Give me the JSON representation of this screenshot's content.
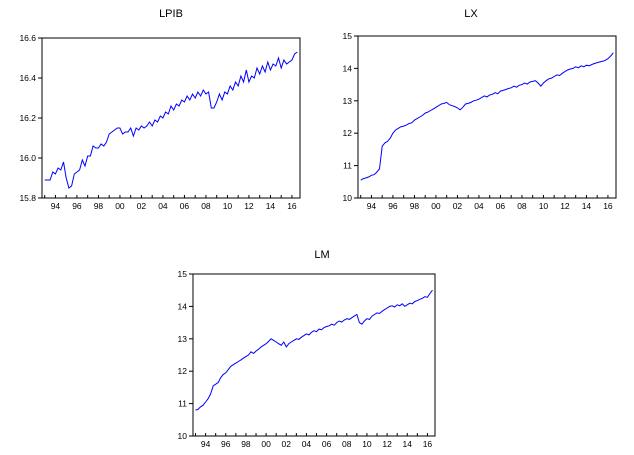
{
  "chart_data": [
    {
      "type": "line",
      "title": "LPIB",
      "xlabel": "",
      "ylabel": "",
      "xlim": [
        1992.75,
        2016.75
      ],
      "ylim": [
        15.8,
        16.6
      ],
      "yticks": [
        15.8,
        16.0,
        16.2,
        16.4,
        16.6
      ],
      "ytick_labels": [
        "15.8",
        "16.0",
        "16.2",
        "16.4",
        "16.6"
      ],
      "xticks": [
        1994,
        1996,
        1998,
        2000,
        2002,
        2004,
        2006,
        2008,
        2010,
        2012,
        2014,
        2016
      ],
      "xtick_labels": [
        "94",
        "96",
        "98",
        "00",
        "02",
        "04",
        "06",
        "08",
        "10",
        "12",
        "14",
        "16"
      ],
      "grid": false,
      "series": [
        {
          "color": "#0000ff",
          "x": [
            1993.0,
            1993.5,
            1993.75,
            1994.0,
            1994.25,
            1994.5,
            1994.75,
            1995.0,
            1995.25,
            1995.5,
            1995.75,
            1996.0,
            1996.25,
            1996.5,
            1996.75,
            1997.0,
            1997.25,
            1997.5,
            1997.75,
            1998.0,
            1998.25,
            1998.5,
            1998.75,
            1999.0,
            1999.25,
            1999.5,
            1999.75,
            2000.0,
            2000.25,
            2000.5,
            2000.75,
            2001.0,
            2001.25,
            2001.5,
            2001.75,
            2002.0,
            2002.25,
            2002.5,
            2002.75,
            2003.0,
            2003.25,
            2003.5,
            2003.75,
            2004.0,
            2004.25,
            2004.5,
            2004.75,
            2005.0,
            2005.25,
            2005.5,
            2005.75,
            2006.0,
            2006.25,
            2006.5,
            2006.75,
            2007.0,
            2007.25,
            2007.5,
            2007.75,
            2008.0,
            2008.25,
            2008.5,
            2008.75,
            2009.0,
            2009.25,
            2009.5,
            2009.75,
            2010.0,
            2010.25,
            2010.5,
            2010.75,
            2011.0,
            2011.25,
            2011.5,
            2011.75,
            2012.0,
            2012.25,
            2012.5,
            2012.75,
            2013.0,
            2013.25,
            2013.5,
            2013.75,
            2014.0,
            2014.25,
            2014.5,
            2014.75,
            2015.0,
            2015.25,
            2015.5,
            2015.75,
            2016.0,
            2016.25,
            2016.5
          ],
          "y": [
            15.89,
            15.89,
            15.93,
            15.92,
            15.95,
            15.94,
            15.98,
            15.9,
            15.85,
            15.86,
            15.92,
            15.93,
            15.94,
            15.99,
            15.96,
            16.01,
            16.01,
            16.06,
            16.05,
            16.05,
            16.07,
            16.06,
            16.08,
            16.12,
            16.13,
            16.14,
            16.15,
            16.15,
            16.12,
            16.13,
            16.13,
            16.15,
            16.11,
            16.15,
            16.14,
            16.16,
            16.15,
            16.16,
            16.18,
            16.16,
            16.19,
            16.18,
            16.21,
            16.2,
            16.23,
            16.22,
            16.26,
            16.24,
            16.27,
            16.26,
            16.29,
            16.28,
            16.31,
            16.29,
            16.32,
            16.3,
            16.33,
            16.31,
            16.34,
            16.32,
            16.33,
            16.25,
            16.25,
            16.28,
            16.32,
            16.29,
            16.33,
            16.32,
            16.36,
            16.34,
            16.38,
            16.36,
            16.41,
            16.38,
            16.44,
            16.38,
            16.41,
            16.4,
            16.45,
            16.42,
            16.46,
            16.43,
            16.48,
            16.44,
            16.47,
            16.46,
            16.5,
            16.45,
            16.49,
            16.47,
            16.48,
            16.49,
            16.52,
            16.53
          ]
        }
      ]
    },
    {
      "type": "line",
      "title": "LX",
      "xlabel": "",
      "ylabel": "",
      "xlim": [
        1992.75,
        2016.75
      ],
      "ylim": [
        10,
        15
      ],
      "yticks": [
        10,
        11,
        12,
        13,
        14,
        15
      ],
      "ytick_labels": [
        "10",
        "11",
        "12",
        "13",
        "14",
        "15"
      ],
      "xticks": [
        1994,
        1996,
        1998,
        2000,
        2002,
        2004,
        2006,
        2008,
        2010,
        2012,
        2014,
        2016
      ],
      "xtick_labels": [
        "94",
        "96",
        "98",
        "00",
        "02",
        "04",
        "06",
        "08",
        "10",
        "12",
        "14",
        "16"
      ],
      "grid": false,
      "series": [
        {
          "color": "#0000ff",
          "x": [
            1993.0,
            1993.25,
            1993.5,
            1993.75,
            1994.0,
            1994.25,
            1994.5,
            1994.75,
            1995.0,
            1995.25,
            1995.5,
            1995.75,
            1996.0,
            1996.25,
            1996.5,
            1996.75,
            1997.0,
            1997.25,
            1997.5,
            1997.75,
            1998.0,
            1998.25,
            1998.5,
            1998.75,
            1999.0,
            1999.25,
            1999.5,
            1999.75,
            2000.0,
            2000.25,
            2000.5,
            2000.75,
            2001.0,
            2001.25,
            2001.5,
            2001.75,
            2002.0,
            2002.25,
            2002.5,
            2002.75,
            2003.0,
            2003.25,
            2003.5,
            2003.75,
            2004.0,
            2004.25,
            2004.5,
            2004.75,
            2005.0,
            2005.25,
            2005.5,
            2005.75,
            2006.0,
            2006.25,
            2006.5,
            2006.75,
            2007.0,
            2007.25,
            2007.5,
            2007.75,
            2008.0,
            2008.25,
            2008.5,
            2008.75,
            2009.0,
            2009.25,
            2009.5,
            2009.75,
            2010.0,
            2010.25,
            2010.5,
            2010.75,
            2011.0,
            2011.25,
            2011.5,
            2011.75,
            2012.0,
            2012.25,
            2012.5,
            2012.75,
            2013.0,
            2013.25,
            2013.5,
            2013.75,
            2014.0,
            2014.25,
            2014.5,
            2014.75,
            2015.0,
            2015.25,
            2015.5,
            2015.75,
            2016.0,
            2016.25,
            2016.5
          ],
          "y": [
            10.55,
            10.6,
            10.62,
            10.65,
            10.7,
            10.72,
            10.8,
            10.9,
            11.6,
            11.7,
            11.75,
            11.85,
            12.0,
            12.1,
            12.15,
            12.2,
            12.22,
            12.25,
            12.3,
            12.32,
            12.4,
            12.45,
            12.5,
            12.55,
            12.62,
            12.65,
            12.7,
            12.75,
            12.8,
            12.85,
            12.9,
            12.92,
            12.95,
            12.88,
            12.85,
            12.82,
            12.78,
            12.72,
            12.8,
            12.9,
            12.92,
            12.95,
            13.0,
            13.02,
            13.05,
            13.1,
            13.15,
            13.12,
            13.18,
            13.2,
            13.25,
            13.22,
            13.3,
            13.32,
            13.35,
            13.38,
            13.4,
            13.45,
            13.42,
            13.48,
            13.5,
            13.55,
            13.52,
            13.58,
            13.6,
            13.62,
            13.55,
            13.45,
            13.55,
            13.62,
            13.68,
            13.7,
            13.75,
            13.8,
            13.78,
            13.85,
            13.9,
            13.95,
            13.98,
            14.0,
            14.05,
            14.02,
            14.08,
            14.05,
            14.1,
            14.08,
            14.12,
            14.15,
            14.18,
            14.2,
            14.22,
            14.25,
            14.3,
            14.38,
            14.48
          ]
        }
      ]
    },
    {
      "type": "line",
      "title": "LM",
      "xlabel": "",
      "ylabel": "",
      "xlim": [
        1992.75,
        2016.75
      ],
      "ylim": [
        10,
        15
      ],
      "yticks": [
        10,
        11,
        12,
        13,
        14,
        15
      ],
      "ytick_labels": [
        "10",
        "11",
        "12",
        "13",
        "14",
        "15"
      ],
      "xticks": [
        1994,
        1996,
        1998,
        2000,
        2002,
        2004,
        2006,
        2008,
        2010,
        2012,
        2014,
        2016
      ],
      "xtick_labels": [
        "94",
        "96",
        "98",
        "00",
        "02",
        "04",
        "06",
        "08",
        "10",
        "12",
        "14",
        "16"
      ],
      "grid": false,
      "series": [
        {
          "color": "#0000ff",
          "x": [
            1993.0,
            1993.25,
            1993.5,
            1993.75,
            1994.0,
            1994.25,
            1994.5,
            1994.75,
            1995.0,
            1995.25,
            1995.5,
            1995.75,
            1996.0,
            1996.25,
            1996.5,
            1996.75,
            1997.0,
            1997.25,
            1997.5,
            1997.75,
            1998.0,
            1998.25,
            1998.5,
            1998.75,
            1999.0,
            1999.25,
            1999.5,
            1999.75,
            2000.0,
            2000.25,
            2000.5,
            2000.75,
            2001.0,
            2001.25,
            2001.5,
            2001.75,
            2002.0,
            2002.25,
            2002.5,
            2002.75,
            2003.0,
            2003.25,
            2003.5,
            2003.75,
            2004.0,
            2004.25,
            2004.5,
            2004.75,
            2005.0,
            2005.25,
            2005.5,
            2005.75,
            2006.0,
            2006.25,
            2006.5,
            2006.75,
            2007.0,
            2007.25,
            2007.5,
            2007.75,
            2008.0,
            2008.25,
            2008.5,
            2008.75,
            2009.0,
            2009.25,
            2009.5,
            2009.75,
            2010.0,
            2010.25,
            2010.5,
            2010.75,
            2011.0,
            2011.25,
            2011.5,
            2011.75,
            2012.0,
            2012.25,
            2012.5,
            2012.75,
            2013.0,
            2013.25,
            2013.5,
            2013.75,
            2014.0,
            2014.25,
            2014.5,
            2014.75,
            2015.0,
            2015.25,
            2015.5,
            2015.75,
            2016.0,
            2016.25,
            2016.5
          ],
          "y": [
            10.8,
            10.82,
            10.9,
            10.95,
            11.05,
            11.15,
            11.3,
            11.55,
            11.6,
            11.65,
            11.8,
            11.9,
            11.95,
            12.05,
            12.15,
            12.2,
            12.25,
            12.3,
            12.35,
            12.4,
            12.45,
            12.5,
            12.6,
            12.55,
            12.62,
            12.68,
            12.75,
            12.8,
            12.85,
            12.92,
            13.0,
            12.95,
            12.9,
            12.85,
            12.8,
            12.9,
            12.75,
            12.85,
            12.9,
            12.95,
            13.0,
            12.98,
            13.05,
            13.1,
            13.15,
            13.12,
            13.2,
            13.25,
            13.22,
            13.3,
            13.28,
            13.35,
            13.38,
            13.4,
            13.45,
            13.42,
            13.5,
            13.55,
            13.52,
            13.58,
            13.62,
            13.6,
            13.65,
            13.7,
            13.75,
            13.5,
            13.45,
            13.55,
            13.62,
            13.6,
            13.7,
            13.75,
            13.8,
            13.78,
            13.85,
            13.9,
            13.95,
            14.0,
            14.02,
            13.98,
            14.05,
            14.02,
            14.08,
            14.0,
            14.05,
            14.1,
            14.08,
            14.15,
            14.18,
            14.22,
            14.25,
            14.3,
            14.28,
            14.4,
            14.5
          ]
        }
      ]
    }
  ]
}
